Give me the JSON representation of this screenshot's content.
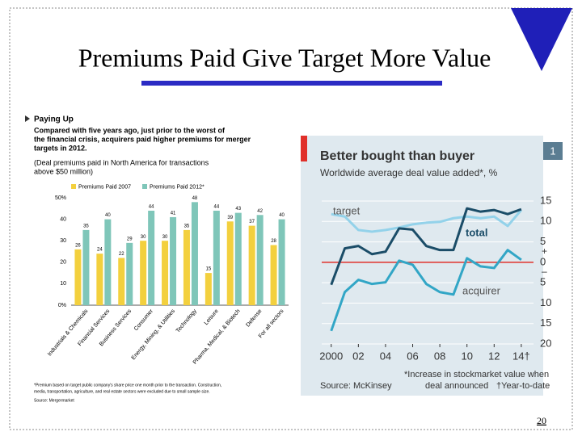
{
  "slide": {
    "title": "Premiums Paid Give Target More Value",
    "page": "20"
  },
  "chart_data": [
    {
      "type": "bar",
      "title": "Paying Up",
      "subtitle": [
        "Compared with five years ago, just prior to the worst of",
        "the financial crisis, acquirers paid higher premiums for merger",
        "targets in 2012."
      ],
      "note": [
        "(Deal premiums paid in North America for transactions",
        "above $50 million)"
      ],
      "categories": [
        "Industrials & Chemicals",
        "Financial Services",
        "Business Services",
        "Consumer",
        "Energy, Mining, & Utilities",
        "Technology",
        "Leisure",
        "Pharma, Medical, & Biotech",
        "Defense",
        "For all sectors"
      ],
      "series": [
        {
          "name": "Premiums Paid 2007",
          "color": "#f3d03e",
          "values": [
            26,
            24,
            22,
            30,
            30,
            35,
            15,
            39,
            37,
            28
          ]
        },
        {
          "name": "Premiums Paid 2012*",
          "color": "#7fc6b9",
          "values": [
            35,
            40,
            29,
            44,
            41,
            48,
            44,
            43,
            42,
            40
          ]
        }
      ],
      "ylim": [
        0,
        50
      ],
      "yticks": [
        {
          "value": 0,
          "label": "0%"
        },
        10,
        20,
        30,
        40,
        {
          "value": 50,
          "label": "50%"
        }
      ],
      "grid": false,
      "footnote": [
        "*Premium based on target public company's share price one month prior to the transaction. Construction,",
        "media, transportation, agriculture, and real estate sectors were excluded due to small sample size."
      ],
      "source": "Source: Mergermarket"
    },
    {
      "type": "line",
      "title": "Better bought than buyer",
      "subtitle": "Worldwide average deal value added*, %",
      "badge": "1",
      "x": [
        2000,
        2001,
        2002,
        2003,
        2004,
        2005,
        2006,
        2007,
        2008,
        2009,
        2010,
        2011,
        2012,
        2013,
        2014
      ],
      "series": [
        {
          "name": "target",
          "color": "#93d2ea",
          "values": [
            11.8,
            11.2,
            7.9,
            7.5,
            7.9,
            8.5,
            9.3,
            9.7,
            9.9,
            10.8,
            11.2,
            10.8,
            11.2,
            8.9,
            12.8
          ]
        },
        {
          "name": "total",
          "color": "#1b4d68",
          "values": [
            -5.5,
            3.4,
            4,
            2,
            2.6,
            8.3,
            8,
            4,
            3,
            3,
            13.2,
            12.4,
            12.8,
            11.8,
            13
          ]
        },
        {
          "name": "acquirer",
          "color": "#32a6c6",
          "values": [
            -16.8,
            -7.3,
            -4.3,
            -5.3,
            -4.9,
            0.4,
            -0.6,
            -5.3,
            -7.3,
            -7.9,
            1,
            -1,
            -1.4,
            3,
            0.6
          ]
        }
      ],
      "xlim": [
        1999.3,
        2014.9
      ],
      "xticks": [
        {
          "value": 2000,
          "label": "2000"
        },
        {
          "value": 2002,
          "label": "02"
        },
        {
          "value": 2004,
          "label": "04"
        },
        {
          "value": 2006,
          "label": "06"
        },
        {
          "value": 2008,
          "label": "08"
        },
        {
          "value": 2010,
          "label": "10"
        },
        {
          "value": 2012,
          "label": "12"
        },
        {
          "value": 2014,
          "label": "14†"
        }
      ],
      "ylim": [
        -20,
        15
      ],
      "yticks": [
        15,
        10,
        5,
        0,
        {
          "value": -5,
          "label": "5"
        },
        {
          "value": -10,
          "label": "10"
        },
        {
          "value": -15,
          "label": "15"
        },
        {
          "value": -20,
          "label": "20"
        }
      ],
      "sign_labels": [
        "+",
        "–"
      ],
      "grid": true,
      "zero_line_color": "#e0302a",
      "source": "Source: McKinsey",
      "footnotes": [
        "*Increase in stockmarket value when",
        "deal announced",
        "†Year-to-date"
      ]
    }
  ]
}
